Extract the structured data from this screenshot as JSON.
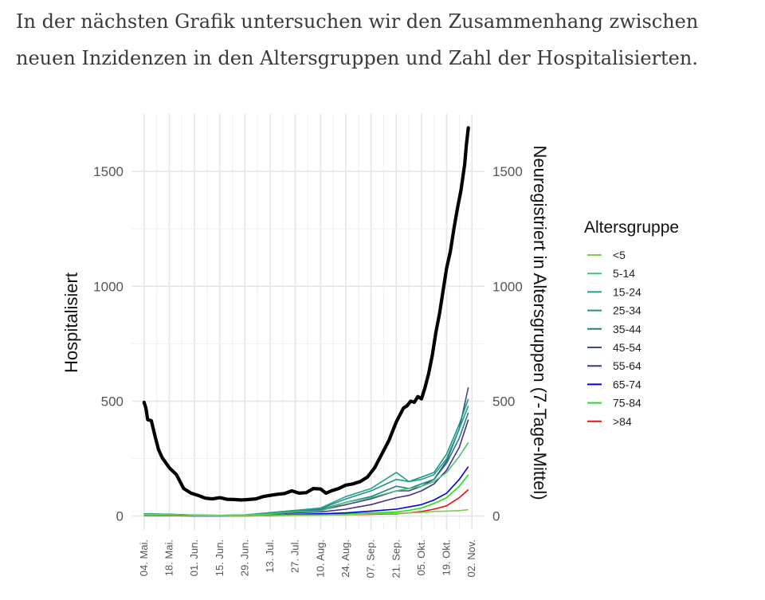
{
  "intro": {
    "line1": "In der nächsten Grafik untersuchen wir den Zusammenhang zwischen",
    "line2": "neuen Inzidenzen in den Altersgruppen und Zahl der Hospitalisierten."
  },
  "chart_data": {
    "type": "line",
    "ylabel_left": "Hospitalisiert",
    "ylabel_right": "Neuregistriert in Altersgruppen (7-Tage-Mittel)",
    "xlabel": "",
    "ylim": [
      -60,
      1750
    ],
    "yticks_left": [
      0,
      500,
      1000,
      1500
    ],
    "yticks_right": [
      0,
      500,
      1000,
      1500
    ],
    "x_tick_labels": [
      "04. Mai.",
      "18. Mai.",
      "01. Jun.",
      "15. Jun.",
      "29. Jun.",
      "13. Jul.",
      "27. Jul.",
      "10. Aug.",
      "24. Aug.",
      "07. Sep.",
      "21. Sep.",
      "05. Okt.",
      "19. Okt.",
      "02. Nov."
    ],
    "x_tick_days": [
      0,
      14,
      28,
      42,
      56,
      70,
      84,
      98,
      112,
      126,
      140,
      154,
      168,
      182
    ],
    "xlim": [
      -7,
      189
    ],
    "grid": true,
    "legend": {
      "title": "Altersgruppe",
      "position": "right"
    },
    "hospitalisiert": {
      "name": "Hospitalisiert",
      "color": "#000000",
      "x": [
        0,
        1,
        2,
        4,
        6,
        8,
        10,
        14,
        18,
        22,
        26,
        30,
        34,
        38,
        42,
        46,
        50,
        54,
        58,
        62,
        66,
        70,
        74,
        78,
        82,
        86,
        90,
        94,
        98,
        101,
        104,
        108,
        112,
        116,
        120,
        124,
        128,
        132,
        136,
        140,
        142,
        144,
        146,
        148,
        150,
        152,
        154,
        156,
        158,
        160,
        162,
        164,
        166,
        168,
        170,
        172,
        174,
        176,
        178,
        179,
        180
      ],
      "values": [
        495,
        470,
        420,
        415,
        350,
        290,
        255,
        210,
        180,
        120,
        100,
        90,
        78,
        75,
        80,
        73,
        72,
        70,
        72,
        75,
        85,
        90,
        95,
        98,
        110,
        100,
        102,
        120,
        118,
        100,
        110,
        120,
        135,
        140,
        150,
        170,
        210,
        270,
        330,
        410,
        440,
        470,
        480,
        500,
        495,
        520,
        510,
        560,
        620,
        700,
        800,
        880,
        980,
        1080,
        1150,
        1250,
        1340,
        1420,
        1530,
        1620,
        1690
      ]
    },
    "x": [
      0,
      14,
      28,
      42,
      56,
      70,
      84,
      98,
      112,
      126,
      140,
      147,
      154,
      161,
      168,
      175,
      180
    ],
    "series": [
      {
        "name": "<5",
        "color": "#7ad151",
        "values": [
          5,
          4,
          2,
          2,
          2,
          4,
          5,
          5,
          6,
          10,
          12,
          14,
          16,
          20,
          22,
          24,
          28
        ]
      },
      {
        "name": "5-14",
        "color": "#4ac16d",
        "values": [
          8,
          6,
          3,
          2,
          4,
          10,
          18,
          22,
          60,
          80,
          110,
          120,
          130,
          150,
          190,
          260,
          320
        ]
      },
      {
        "name": "15-24",
        "color": "#1fa187",
        "values": [
          10,
          8,
          4,
          3,
          5,
          15,
          25,
          35,
          85,
          120,
          190,
          150,
          160,
          180,
          250,
          380,
          480
        ]
      },
      {
        "name": "25-34",
        "color": "#21918c",
        "values": [
          10,
          8,
          4,
          3,
          5,
          15,
          25,
          32,
          75,
          110,
          160,
          150,
          170,
          190,
          270,
          400,
          510
        ]
      },
      {
        "name": "35-44",
        "color": "#277f8e",
        "values": [
          8,
          6,
          3,
          2,
          4,
          12,
          22,
          28,
          60,
          85,
          130,
          120,
          140,
          160,
          230,
          340,
          450
        ]
      },
      {
        "name": "45-54",
        "color": "#3e4a89",
        "values": [
          8,
          6,
          3,
          2,
          4,
          12,
          20,
          25,
          50,
          75,
          110,
          110,
          130,
          160,
          240,
          380,
          560
        ]
      },
      {
        "name": "55-64",
        "color": "#46327e",
        "values": [
          6,
          5,
          2,
          2,
          3,
          8,
          15,
          18,
          30,
          50,
          80,
          90,
          110,
          140,
          200,
          300,
          420
        ]
      },
      {
        "name": "65-74",
        "color": "#0000ee",
        "values": [
          4,
          3,
          1,
          1,
          2,
          4,
          8,
          10,
          14,
          22,
          30,
          40,
          50,
          70,
          100,
          160,
          215
        ]
      },
      {
        "name": "75-84",
        "color": "#22dd22",
        "values": [
          3,
          2,
          1,
          1,
          1,
          3,
          6,
          8,
          10,
          14,
          18,
          25,
          35,
          55,
          80,
          130,
          180
        ]
      },
      {
        "name": ">84",
        "color": "#ee1111",
        "values": [
          2,
          2,
          1,
          1,
          1,
          2,
          4,
          5,
          6,
          8,
          10,
          14,
          20,
          30,
          45,
          80,
          115
        ]
      }
    ]
  }
}
